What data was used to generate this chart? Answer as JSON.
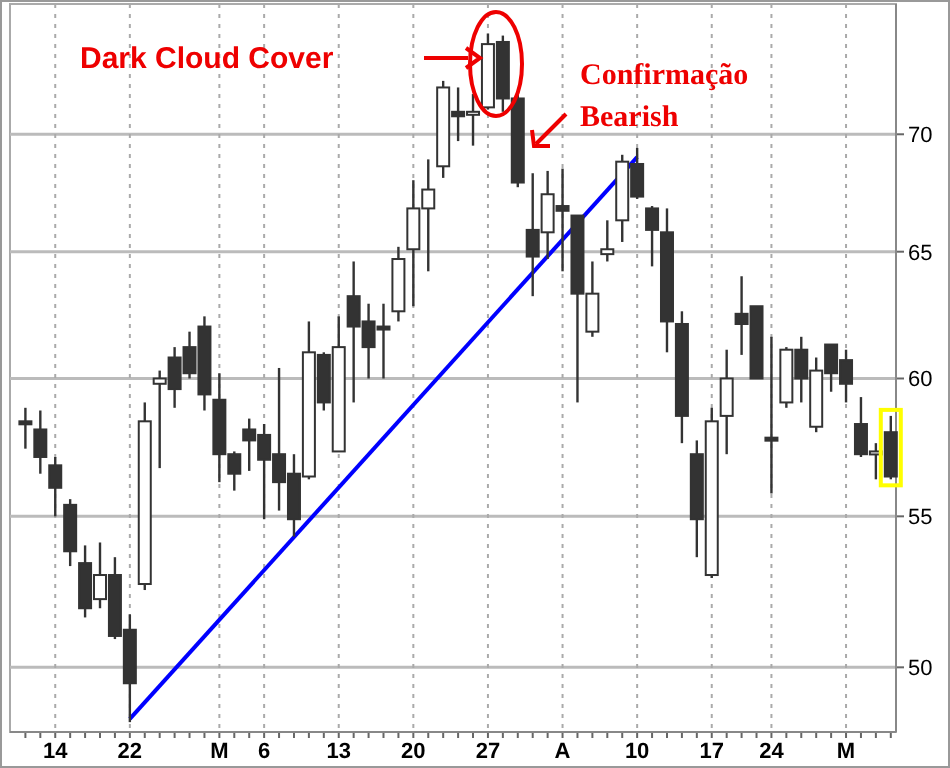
{
  "chart_data": {
    "type": "candlestick",
    "categories": [
      null,
      null,
      "14",
      null,
      null,
      null,
      null,
      "22",
      null,
      null,
      null,
      null,
      null,
      "M",
      null,
      null,
      "6",
      null,
      null,
      null,
      null,
      "13",
      null,
      null,
      null,
      null,
      "20",
      null,
      null,
      null,
      null,
      "27",
      null,
      null,
      null,
      null,
      "A",
      null,
      null,
      null,
      null,
      "10",
      null,
      null,
      null,
      null,
      "17",
      null,
      null,
      null,
      "24",
      null,
      null,
      null,
      null,
      "M",
      null,
      null,
      null
    ],
    "ohlc": [
      [
        58.4,
        58.9,
        57.4,
        58.3
      ],
      [
        58.1,
        58.8,
        56.5,
        57.1
      ],
      [
        56.8,
        57.1,
        55.0,
        56.0
      ],
      [
        55.4,
        55.6,
        53.3,
        53.8
      ],
      [
        53.4,
        54.0,
        51.6,
        51.9
      ],
      [
        52.2,
        54.1,
        51.9,
        53.0
      ],
      [
        53.0,
        53.6,
        50.9,
        51.0
      ],
      [
        51.2,
        51.7,
        48.3,
        49.5
      ],
      [
        52.7,
        59.1,
        52.5,
        58.4
      ],
      [
        59.8,
        60.3,
        56.7,
        60.0
      ],
      [
        60.8,
        61.2,
        58.9,
        59.6
      ],
      [
        61.2,
        61.8,
        60.0,
        60.2
      ],
      [
        62.0,
        62.4,
        58.8,
        59.4
      ],
      [
        59.2,
        60.2,
        56.2,
        57.2
      ],
      [
        57.2,
        57.3,
        55.9,
        56.5
      ],
      [
        58.1,
        58.5,
        56.6,
        57.7
      ],
      [
        57.9,
        58.3,
        54.9,
        57.0
      ],
      [
        57.2,
        60.4,
        55.2,
        56.2
      ],
      [
        56.5,
        57.2,
        54.3,
        54.9
      ],
      [
        56.4,
        62.2,
        56.3,
        61.0
      ],
      [
        60.9,
        61.0,
        58.8,
        59.1
      ],
      [
        57.3,
        62.4,
        57.3,
        61.2
      ],
      [
        63.2,
        64.6,
        59.1,
        62.0
      ],
      [
        62.2,
        62.9,
        60.0,
        61.2
      ],
      [
        62.0,
        62.9,
        60.0,
        61.9
      ],
      [
        62.6,
        65.2,
        62.2,
        64.7
      ],
      [
        65.1,
        68.0,
        62.8,
        66.8
      ],
      [
        66.8,
        68.9,
        64.2,
        67.6
      ],
      [
        68.6,
        72.4,
        68.1,
        72.1
      ],
      [
        71.0,
        72.1,
        69.7,
        70.8
      ],
      [
        70.9,
        71.8,
        69.5,
        71.0
      ],
      [
        71.2,
        74.6,
        71.1,
        74.1
      ],
      [
        74.2,
        74.5,
        71.0,
        71.6
      ],
      [
        71.6,
        71.9,
        67.7,
        67.9
      ],
      [
        65.9,
        68.3,
        63.2,
        64.8
      ],
      [
        65.8,
        68.4,
        64.7,
        67.4
      ],
      [
        66.9,
        68.5,
        64.2,
        66.7
      ],
      [
        66.5,
        66.5,
        59.1,
        63.3
      ],
      [
        61.8,
        64.6,
        61.6,
        63.3
      ],
      [
        64.9,
        66.3,
        64.6,
        65.1
      ],
      [
        66.3,
        69.1,
        65.4,
        68.8
      ],
      [
        68.7,
        69.4,
        67.2,
        67.3
      ],
      [
        66.8,
        66.9,
        64.4,
        65.9
      ],
      [
        65.8,
        66.8,
        61.0,
        62.2
      ],
      [
        62.1,
        62.6,
        57.6,
        58.6
      ],
      [
        57.2,
        57.7,
        53.6,
        54.9
      ],
      [
        53.0,
        58.9,
        52.9,
        58.4
      ],
      [
        58.6,
        61.1,
        57.2,
        60.0
      ],
      [
        62.5,
        64.0,
        60.9,
        62.1
      ],
      [
        62.8,
        62.8,
        60.0,
        60.0
      ],
      [
        57.8,
        61.6,
        55.8,
        57.7
      ],
      [
        59.1,
        61.2,
        58.9,
        61.1
      ],
      [
        61.1,
        61.6,
        59.1,
        60.0
      ],
      [
        58.2,
        60.8,
        58.0,
        60.3
      ],
      [
        61.3,
        61.3,
        59.5,
        60.2
      ],
      [
        60.7,
        61.1,
        59.1,
        59.8
      ],
      [
        58.3,
        59.3,
        57.1,
        57.2
      ],
      [
        57.2,
        57.6,
        56.3,
        57.3
      ],
      [
        58.0,
        58.6,
        56.3,
        56.4
      ]
    ],
    "series": [
      {
        "type": "line",
        "color": "#0000ff",
        "values": [
          null,
          null,
          null,
          null,
          null,
          null,
          null,
          48.4,
          null,
          null,
          null,
          null,
          null,
          null,
          null,
          null,
          null,
          null,
          null,
          null,
          null,
          null,
          null,
          null,
          null,
          null,
          null,
          null,
          null,
          null,
          null,
          null,
          null,
          null,
          null,
          null,
          null,
          null,
          null,
          null,
          null,
          69.0,
          null,
          null,
          null,
          null,
          null,
          null,
          null,
          null,
          null,
          null,
          null,
          null,
          null,
          null,
          null,
          null,
          null
        ]
      }
    ],
    "ylim": [
      48,
      76
    ],
    "yticks": [
      50,
      55,
      60,
      65,
      70
    ],
    "log": true,
    "grid": true,
    "annotations": [
      "Dark Cloud Cover",
      "Confirmação\nBearish"
    ]
  }
}
